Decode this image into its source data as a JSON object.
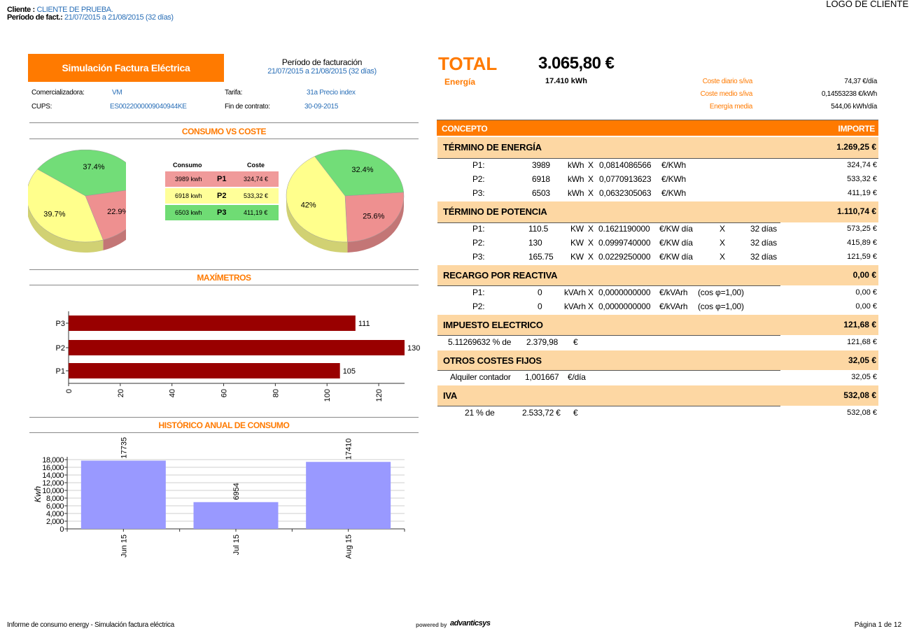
{
  "header": {
    "cliente_label": "Cliente :",
    "cliente_value": "CLIENTE DE PRUEBA.",
    "periodo_label": "Período de fact.:",
    "periodo_value": "21/07/2015 a 21/08/2015 (32 días)",
    "logo": "LOGO DE CLIENTE"
  },
  "title": "Simulación Factura Eléctrica",
  "periodo": {
    "label": "Período de facturación",
    "value": "21/07/2015 a 21/08/2015 (32 días)"
  },
  "info": {
    "comercializadora_label": "Comercializadora:",
    "comercializadora": "VM",
    "cups_label": "CUPS:",
    "cups": "ES0022000009040944KE",
    "tarifa_label": "Tarifa:",
    "tarifa": "31a Precio index",
    "fin_label": "Fin de contrato:",
    "fin": "30-09-2015"
  },
  "consumo_coste": {
    "title": "CONSUMO VS COSTE",
    "col_consumo": "Consumo",
    "col_coste": "Coste",
    "rows": [
      {
        "consumo": "3989 kwh",
        "period": "P1",
        "coste": "324,74  €",
        "color": "#f09a9a"
      },
      {
        "consumo": "6918 kwh",
        "period": "P2",
        "coste": "533,32  €",
        "color": "#ffff99"
      },
      {
        "consumo": "6503 kwh",
        "period": "P3",
        "coste": "411,19  €",
        "color": "#6fdc74"
      }
    ]
  },
  "chart_data": [
    {
      "type": "pie",
      "title": "",
      "labels": [
        "P1",
        "P2",
        "P3"
      ],
      "values": [
        22.9,
        39.7,
        37.4
      ],
      "value_labels": [
        "22.9%",
        "39.7%",
        "37.4%"
      ],
      "colors": [
        "#ee9090",
        "#ffff8c",
        "#72dd78"
      ]
    },
    {
      "type": "pie",
      "title": "",
      "labels": [
        "P1",
        "P2",
        "P3"
      ],
      "values": [
        25.6,
        42,
        32.4
      ],
      "value_labels": [
        "25.6%",
        "42%",
        "32.4%"
      ],
      "colors": [
        "#ee9090",
        "#ffff8c",
        "#72dd78"
      ]
    },
    {
      "type": "bar",
      "orientation": "horizontal",
      "title": "MAXÍMETROS",
      "categories": [
        "P1",
        "P2",
        "P3"
      ],
      "values": [
        105,
        130,
        111
      ],
      "xlim": [
        0,
        130
      ],
      "xticks": [
        "0",
        "20",
        "40",
        "60",
        "80",
        "100",
        "120"
      ],
      "color": "#990000"
    },
    {
      "type": "bar",
      "title": "HISTÓRICO ANUAL DE CONSUMO",
      "ylabel": "Kwh",
      "categories": [
        "Jun 15",
        "Jul 15",
        "Aug 15"
      ],
      "values": [
        17735,
        6954,
        17410
      ],
      "ylim": [
        0,
        18000
      ],
      "yticks": [
        "0",
        "2,000",
        "4,000",
        "6,000",
        "8,000",
        "10,000",
        "12,000",
        "14,000",
        "16,000",
        "18,000"
      ],
      "grid": true,
      "color": "#9999ff"
    }
  ],
  "total": {
    "label": "TOTAL",
    "value": "3.065,80 €",
    "energia_label": "Energía",
    "energia_value": "17.410 kWh",
    "stats": [
      {
        "label": "Coste diario s/iva",
        "value": "74,37  €/día"
      },
      {
        "label": "Coste medio s/iva",
        "value": "0,14553238 €/kWh"
      },
      {
        "label": "Energía media",
        "value": "544,06  kWh/día"
      }
    ]
  },
  "table": {
    "col_concepto": "CONCEPTO",
    "col_importe": "IMPORTE",
    "energia": {
      "title": "TÉRMINO DE ENERGÍA",
      "total": "1.269,25 €",
      "rows": [
        {
          "p": "P1:",
          "q": "3989",
          "u": "kWh",
          "x": "X",
          "price": "0,0814086566",
          "pu": "€/KWh",
          "imp": "324,74  €"
        },
        {
          "p": "P2:",
          "q": "6918",
          "u": "kWh",
          "x": "X",
          "price": "0,0770913623",
          "pu": "€/KWh",
          "imp": "533,32  €"
        },
        {
          "p": "P3:",
          "q": "6503",
          "u": "kWh",
          "x": "X",
          "price": "0,0632305063",
          "pu": "€/KWh",
          "imp": "411,19  €"
        }
      ]
    },
    "potencia": {
      "title": "TÉRMINO DE POTENCIA",
      "total": "1.110,74 €",
      "rows": [
        {
          "p": "P1:",
          "q": "110.5",
          "u": "KW",
          "x": "X",
          "price": "0.1621190000",
          "pu": "€/KW día",
          "x2": "X",
          "d": "32",
          "du": "días",
          "imp": "573,25  €"
        },
        {
          "p": "P2:",
          "q": "130",
          "u": "KW",
          "x": "X",
          "price": "0.0999740000",
          "pu": "€/KW día",
          "x2": "X",
          "d": "32",
          "du": "días",
          "imp": "415,89  €"
        },
        {
          "p": "P3:",
          "q": "165.75",
          "u": "KW",
          "x": "X",
          "price": "0.0229250000",
          "pu": "€/KW día",
          "x2": "X",
          "d": "32",
          "du": "días",
          "imp": "121,59  €"
        }
      ]
    },
    "reactiva": {
      "title": "RECARGO POR REACTIVA",
      "total": "0,00 €",
      "rows": [
        {
          "p": "P1:",
          "q": "0",
          "u": "kVArh",
          "x": "X",
          "price": "0,0000000000",
          "pu": "€/kVArh",
          "cos": "(cos  φ=1,00)",
          "imp": "0,00  €"
        },
        {
          "p": "P2:",
          "q": "0",
          "u": "kVArh",
          "x": "X",
          "price": "0,0000000000",
          "pu": "€/kVArh",
          "cos": "(cos  φ=1,00)",
          "imp": "0,00  €"
        }
      ]
    },
    "impuesto": {
      "title": "IMPUESTO ELECTRICO",
      "total": "121,68 €",
      "row": {
        "pct": "5.11269632 % de",
        "base": "2.379,98",
        "unit": "€",
        "imp": "121,68  €"
      }
    },
    "otros": {
      "title": "OTROS COSTES FIJOS",
      "total": "32,05 €",
      "row": {
        "label": "Alquiler  contador",
        "val": "1,001667",
        "unit": "€/día",
        "imp": "32,05  €"
      }
    },
    "iva": {
      "title": "IVA",
      "total": "532,08 €",
      "row": {
        "pct": "21 % de",
        "base": "2.533,72 €",
        "unit": "€",
        "imp": "532,08  €"
      }
    }
  },
  "footer": {
    "left": "Informe  de  consumo energy  -  Simulación  factura  eléctrica",
    "powered": "powered by",
    "brand": "advanticsys",
    "page": "Página 1 de 12"
  }
}
